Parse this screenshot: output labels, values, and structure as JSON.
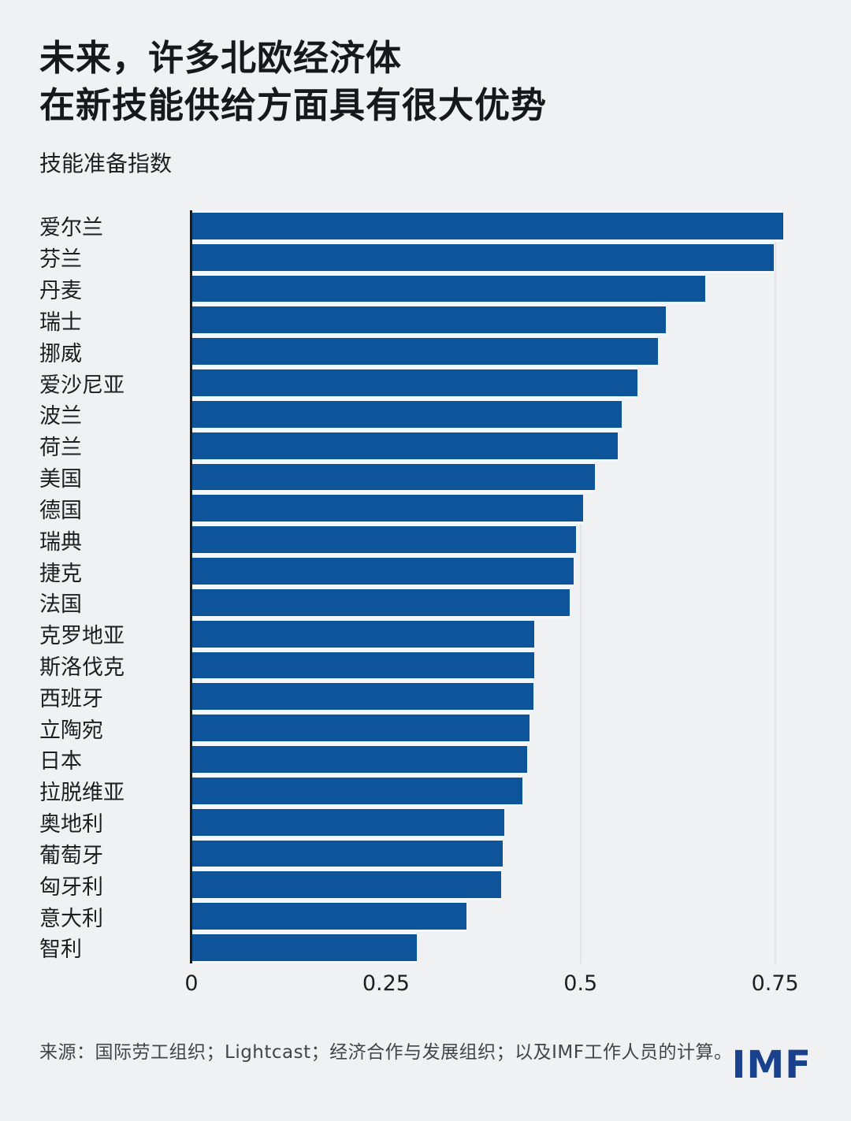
{
  "header": {
    "title_line1": "未来，许多北欧经济体",
    "title_line2": "在新技能供给方面具有很大优势",
    "subtitle": "技能准备指数"
  },
  "chart_data": {
    "type": "bar",
    "orientation": "horizontal",
    "title": "技能准备指数",
    "categories": [
      "爱尔兰",
      "芬兰",
      "丹麦",
      "瑞士",
      "挪威",
      "爱沙尼亚",
      "波兰",
      "荷兰",
      "美国",
      "德国",
      "瑞典",
      "捷克",
      "法国",
      "克罗地亚",
      "斯洛伐克",
      "西班牙",
      "立陶宛",
      "日本",
      "拉脱维亚",
      "奥地利",
      "葡萄牙",
      "匈牙利",
      "意大利",
      "智利"
    ],
    "values": [
      0.76,
      0.748,
      0.66,
      0.61,
      0.599,
      0.573,
      0.553,
      0.548,
      0.518,
      0.503,
      0.494,
      0.491,
      0.486,
      0.441,
      0.44,
      0.439,
      0.434,
      0.431,
      0.425,
      0.402,
      0.4,
      0.398,
      0.353,
      0.29
    ],
    "xlabel": "",
    "ylabel": "",
    "xlim": [
      0,
      0.8
    ],
    "xticks": {
      "values": [
        0,
        0.25,
        0.5,
        0.75
      ],
      "labels": [
        "0",
        "0.25",
        "0.5",
        "0.75"
      ]
    },
    "grid": true,
    "legend": "none",
    "bar_color": "#0d549b",
    "bar_gap_color": "#f3f8fd",
    "axis_color": "#1a1b1e",
    "gridline_color": "#e2e4e8",
    "background_color": "#f0f1f3"
  },
  "footer": {
    "source": "来源：国际劳工组织；Lightcast；经济合作与发展组织；以及IMF工作人员的计算。",
    "logo": "IMF",
    "logo_color": "#19418d"
  }
}
